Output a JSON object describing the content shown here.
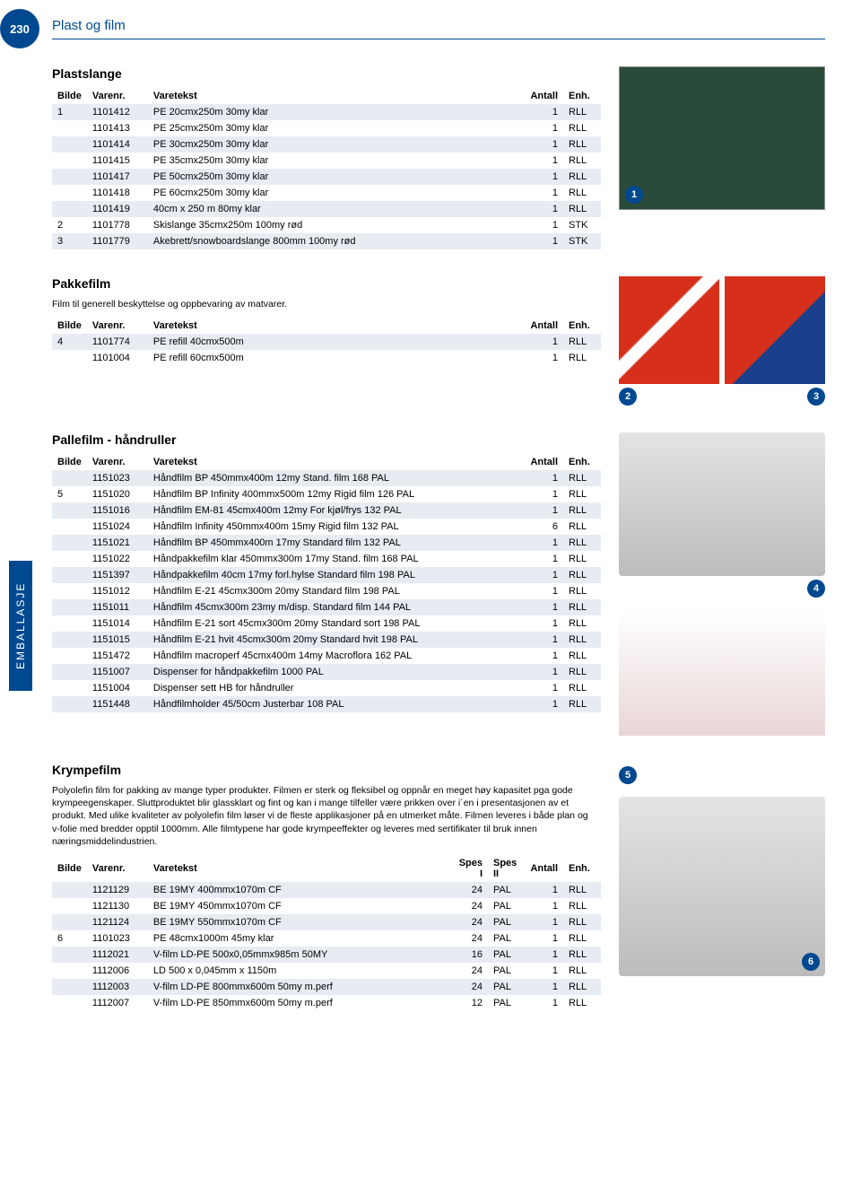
{
  "page": {
    "number": "230",
    "category": "Plast og film"
  },
  "side_label": "EMBALLASJE",
  "headers": {
    "bilde": "Bilde",
    "varenr": "Varenr.",
    "varetekst": "Varetekst",
    "antall": "Antall",
    "enh": "Enh.",
    "spes1": "Spes I",
    "spes2": "Spes II"
  },
  "sections": {
    "plastslange": {
      "title": "Plastslange",
      "rows": [
        {
          "bilde": "1",
          "varenr": "1101412",
          "txt": "PE 20cmx250m 30my klar",
          "antall": "1",
          "enh": "RLL"
        },
        {
          "bilde": "",
          "varenr": "1101413",
          "txt": "PE 25cmx250m 30my klar",
          "antall": "1",
          "enh": "RLL"
        },
        {
          "bilde": "",
          "varenr": "1101414",
          "txt": "PE 30cmx250m 30my klar",
          "antall": "1",
          "enh": "RLL"
        },
        {
          "bilde": "",
          "varenr": "1101415",
          "txt": "PE 35cmx250m 30my klar",
          "antall": "1",
          "enh": "RLL"
        },
        {
          "bilde": "",
          "varenr": "1101417",
          "txt": "PE 50cmx250m 30my klar",
          "antall": "1",
          "enh": "RLL"
        },
        {
          "bilde": "",
          "varenr": "1101418",
          "txt": "PE 60cmx250m 30my klar",
          "antall": "1",
          "enh": "RLL"
        },
        {
          "bilde": "",
          "varenr": "1101419",
          "txt": "40cm x 250 m 80my klar",
          "antall": "1",
          "enh": "RLL"
        },
        {
          "bilde": "2",
          "varenr": "1101778",
          "txt": "Skislange 35cmx250m 100my rød",
          "antall": "1",
          "enh": "STK"
        },
        {
          "bilde": "3",
          "varenr": "1101779",
          "txt": "Akebrett/snowboardslange 800mm 100my rød",
          "antall": "1",
          "enh": "STK"
        }
      ],
      "img_badge": "1"
    },
    "pakkefilm": {
      "title": "Pakkefilm",
      "desc": "Film til generell beskyttelse og oppbevaring av matvarer.",
      "rows": [
        {
          "bilde": "4",
          "varenr": "1101774",
          "txt": "PE refill 40cmx500m",
          "antall": "1",
          "enh": "RLL"
        },
        {
          "bilde": "",
          "varenr": "1101004",
          "txt": "PE refill 60cmx500m",
          "antall": "1",
          "enh": "RLL"
        }
      ],
      "img_badges": [
        "2",
        "3"
      ]
    },
    "pallefilm": {
      "title": "Pallefilm - håndruller",
      "rows": [
        {
          "bilde": "",
          "varenr": "1151023",
          "txt": "Håndfilm BP 450mmx400m 12my Stand. film 168 PAL",
          "antall": "1",
          "enh": "RLL"
        },
        {
          "bilde": "5",
          "varenr": "1151020",
          "txt": "Håndfilm BP Infinity 400mmx500m 12my Rigid film 126 PAL",
          "antall": "1",
          "enh": "RLL"
        },
        {
          "bilde": "",
          "varenr": "1151016",
          "txt": "Håndfilm EM-81 45cmx400m 12my For kjøl/frys 132 PAL",
          "antall": "1",
          "enh": "RLL"
        },
        {
          "bilde": "",
          "varenr": "1151024",
          "txt": "Håndfilm Infinity 450mmx400m 15my Rigid film 132 PAL",
          "antall": "6",
          "enh": "RLL"
        },
        {
          "bilde": "",
          "varenr": "1151021",
          "txt": "Håndfilm BP 450mmx400m 17my Standard film 132 PAL",
          "antall": "1",
          "enh": "RLL"
        },
        {
          "bilde": "",
          "varenr": "1151022",
          "txt": "Håndpakkefilm klar 450mmx300m 17my Stand. film 168 PAL",
          "antall": "1",
          "enh": "RLL"
        },
        {
          "bilde": "",
          "varenr": "1151397",
          "txt": "Håndpakkefilm 40cm 17my forl.hylse Standard film 198 PAL",
          "antall": "1",
          "enh": "RLL"
        },
        {
          "bilde": "",
          "varenr": "1151012",
          "txt": "Håndfilm E-21 45cmx300m 20my Standard film 198 PAL",
          "antall": "1",
          "enh": "RLL"
        },
        {
          "bilde": "",
          "varenr": "1151011",
          "txt": "Håndfilm 45cmx300m 23my m/disp. Standard film 144 PAL",
          "antall": "1",
          "enh": "RLL"
        },
        {
          "bilde": "",
          "varenr": "1151014",
          "txt": "Håndfilm E-21 sort 45cmx300m 20my Standard sort 198 PAL",
          "antall": "1",
          "enh": "RLL"
        },
        {
          "bilde": "",
          "varenr": "1151015",
          "txt": "Håndfilm E-21 hvit 45cmx300m 20my Standard hvit 198 PAL",
          "antall": "1",
          "enh": "RLL"
        },
        {
          "bilde": "",
          "varenr": "1151472",
          "txt": "Håndfilm macroperf 45cmx400m 14my Macroflora 162 PAL",
          "antall": "1",
          "enh": "RLL"
        },
        {
          "bilde": "",
          "varenr": "1151007",
          "txt": "Dispenser for håndpakkefilm 1000 PAL",
          "antall": "1",
          "enh": "RLL"
        },
        {
          "bilde": "",
          "varenr": "1151004",
          "txt": "Dispenser sett HB for håndruller",
          "antall": "1",
          "enh": "RLL"
        },
        {
          "bilde": "",
          "varenr": "1151448",
          "txt": "Håndfilmholder 45/50cm Justerbar 108 PAL",
          "antall": "1",
          "enh": "RLL"
        }
      ],
      "img_badge": "4"
    },
    "krympefilm": {
      "title": "Krympefilm",
      "desc": "Polyolefin film for pakking av mange typer produkter. Filmen er sterk og fleksibel og oppnår en meget høy kapasitet pga gode krympeegenskaper. Sluttproduktet blir glassklart og fint og kan i mange tilfeller være prikken over i´en i presentasjonen av et produkt. Med ulike kvaliteter av polyolefin film løser vi de fleste applikasjoner på en utmerket måte. Filmen leveres i både plan og v-folie med bredder opptil 1000mm. Alle filmtypene har gode krympeeffekter og leveres med sertifikater til bruk innen næringsmiddelindustrien.",
      "rows": [
        {
          "bilde": "",
          "varenr": "1121129",
          "txt": "BE 19MY 400mmx1070m CF",
          "s1": "24",
          "s2": "PAL",
          "antall": "1",
          "enh": "RLL"
        },
        {
          "bilde": "",
          "varenr": "1121130",
          "txt": "BE 19MY 450mmx1070m CF",
          "s1": "24",
          "s2": "PAL",
          "antall": "1",
          "enh": "RLL"
        },
        {
          "bilde": "",
          "varenr": "1121124",
          "txt": "BE 19MY 550mmx1070m CF",
          "s1": "24",
          "s2": "PAL",
          "antall": "1",
          "enh": "RLL"
        },
        {
          "bilde": "6",
          "varenr": "1101023",
          "txt": "PE 48cmx1000m 45my klar",
          "s1": "24",
          "s2": "PAL",
          "antall": "1",
          "enh": "RLL"
        },
        {
          "bilde": "",
          "varenr": "1112021",
          "txt": "V-film LD-PE 500x0,05mmx985m 50MY",
          "s1": "16",
          "s2": "PAL",
          "antall": "1",
          "enh": "RLL"
        },
        {
          "bilde": "",
          "varenr": "1112006",
          "txt": "LD 500 x 0,045mm x 1150m",
          "s1": "24",
          "s2": "PAL",
          "antall": "1",
          "enh": "RLL"
        },
        {
          "bilde": "",
          "varenr": "1112003",
          "txt": "V-film LD-PE 800mmx600m 50my m.perf",
          "s1": "24",
          "s2": "PAL",
          "antall": "1",
          "enh": "RLL"
        },
        {
          "bilde": "",
          "varenr": "1112007",
          "txt": "V-film LD-PE 850mmx600m 50my m.perf",
          "s1": "12",
          "s2": "PAL",
          "antall": "1",
          "enh": "RLL"
        }
      ],
      "img_badges": [
        "5",
        "6"
      ]
    }
  }
}
